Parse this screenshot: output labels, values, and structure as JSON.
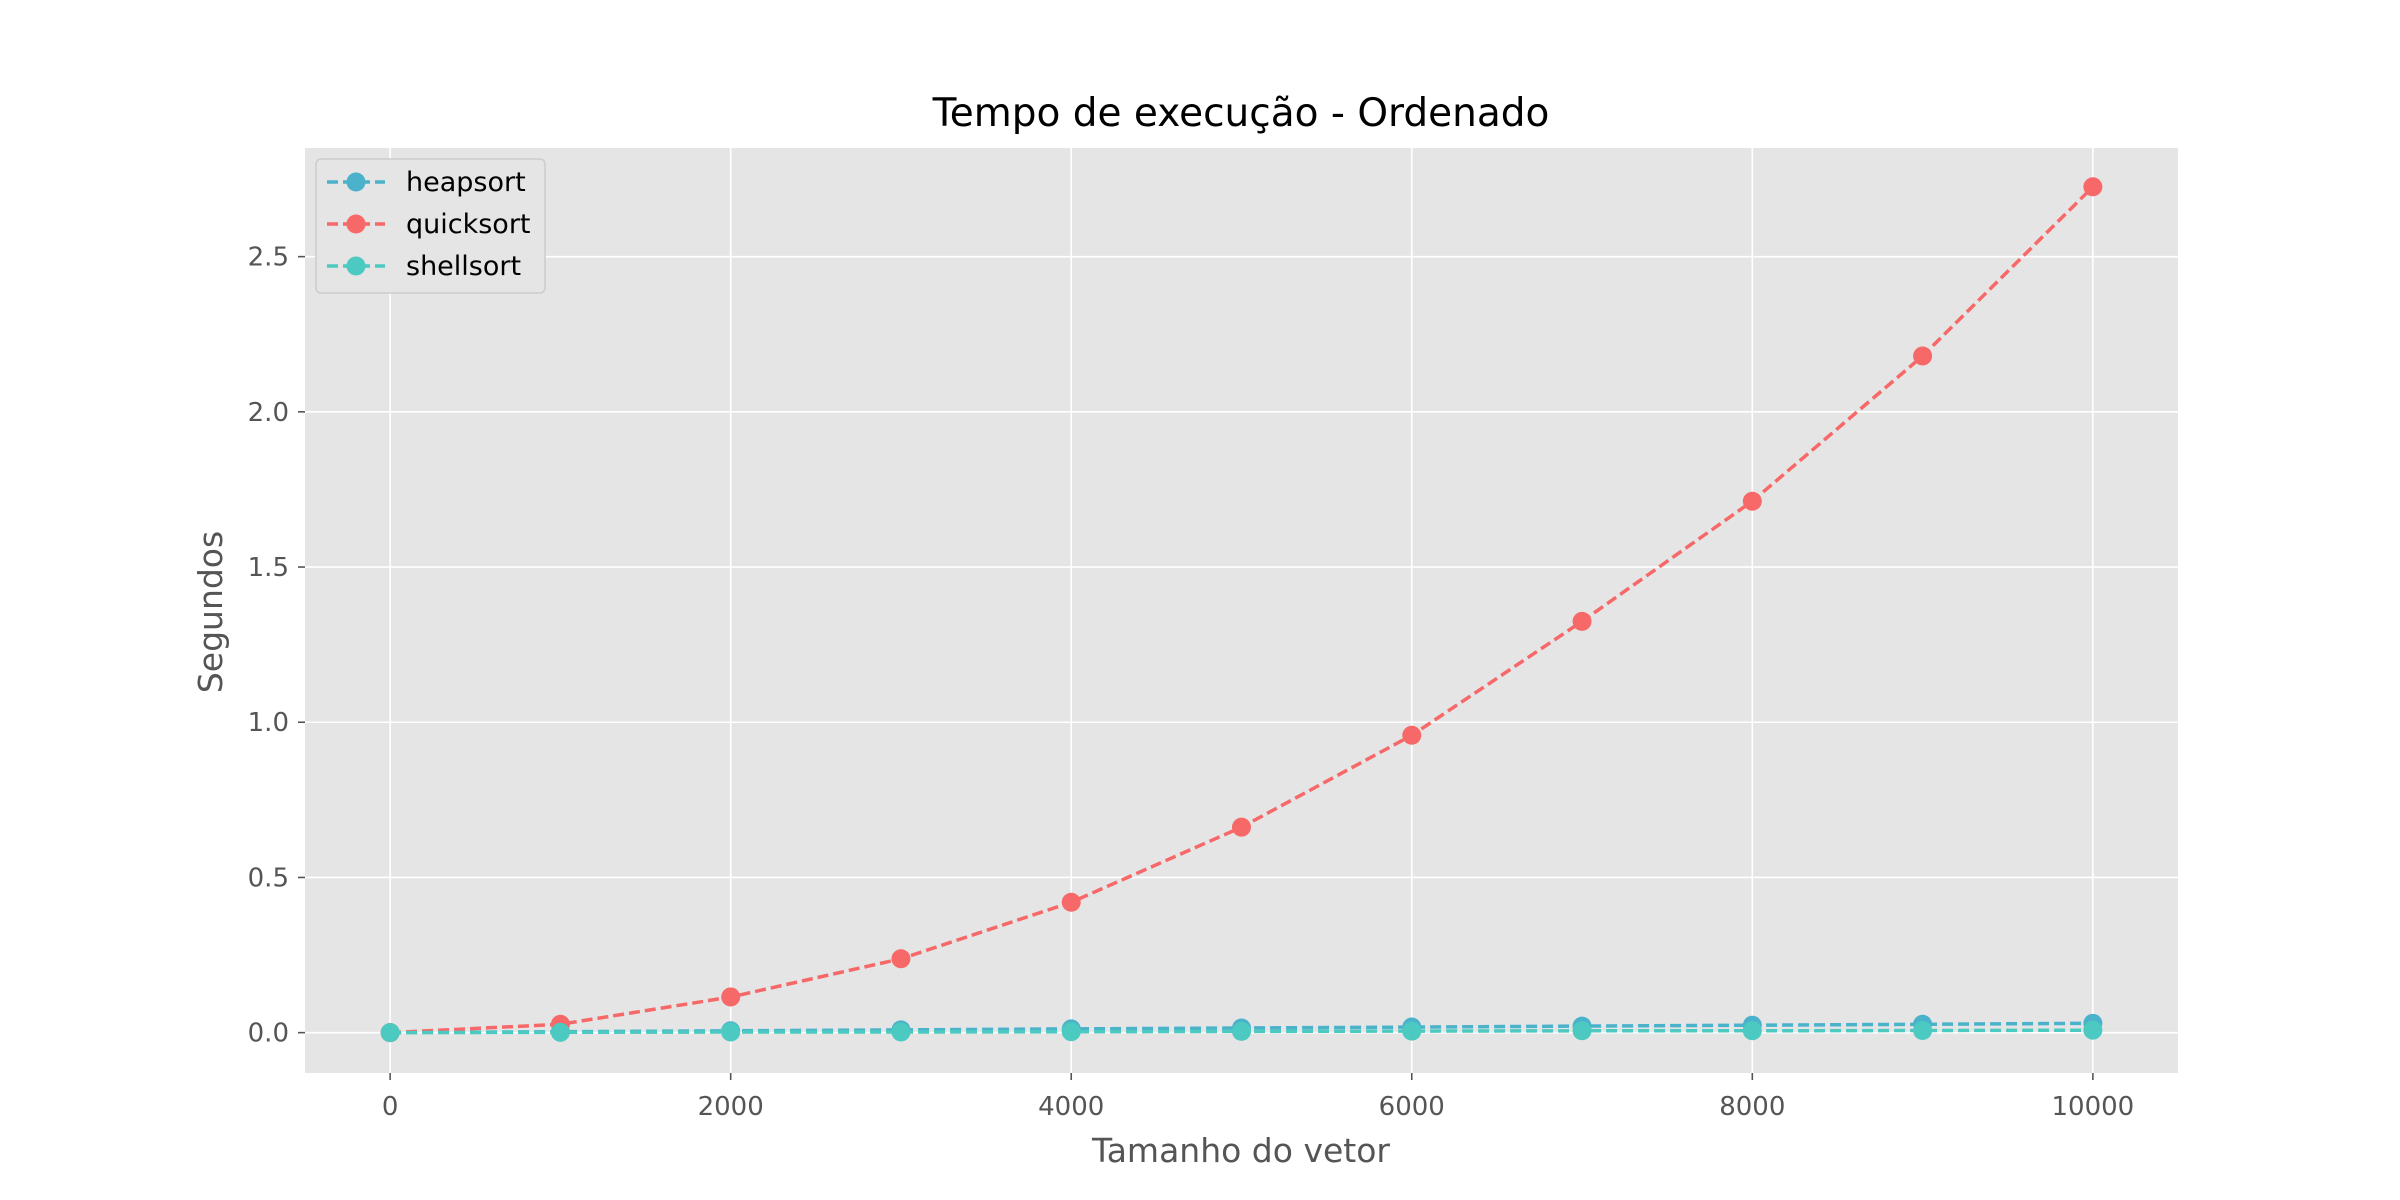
{
  "chart_data": {
    "type": "line",
    "title": "Tempo de execução - Ordenado",
    "xlabel": "Tamanho do vetor",
    "ylabel": "Segundos",
    "x": [
      0,
      1000,
      2000,
      3000,
      4000,
      5000,
      6000,
      7000,
      8000,
      9000,
      10000
    ],
    "xlim": [
      -500,
      10500
    ],
    "ylim": [
      -0.13,
      2.85
    ],
    "xticks": [
      0,
      2000,
      4000,
      6000,
      8000,
      10000
    ],
    "xtick_labels": [
      "0",
      "2000",
      "4000",
      "6000",
      "8000",
      "10000"
    ],
    "yticks": [
      0.0,
      0.5,
      1.0,
      1.5,
      2.0,
      2.5
    ],
    "ytick_labels": [
      "0.0",
      "0.5",
      "1.0",
      "1.5",
      "2.0",
      "2.5"
    ],
    "grid": true,
    "legend_position": "top-left",
    "line_style": "dashed",
    "marker": "circle",
    "series": [
      {
        "name": "heapsort",
        "color": "#4bb2cc",
        "values": [
          0.0,
          0.003,
          0.006,
          0.009,
          0.012,
          0.015,
          0.018,
          0.021,
          0.024,
          0.027,
          0.03
        ]
      },
      {
        "name": "quicksort",
        "color": "#f76868",
        "values": [
          0.0,
          0.027,
          0.115,
          0.238,
          0.42,
          0.662,
          0.958,
          1.325,
          1.712,
          2.18,
          2.725
        ]
      },
      {
        "name": "shellsort",
        "color": "#4cc9c0",
        "values": [
          0.0,
          0.001,
          0.002,
          0.002,
          0.003,
          0.004,
          0.005,
          0.006,
          0.006,
          0.007,
          0.008
        ]
      }
    ]
  }
}
